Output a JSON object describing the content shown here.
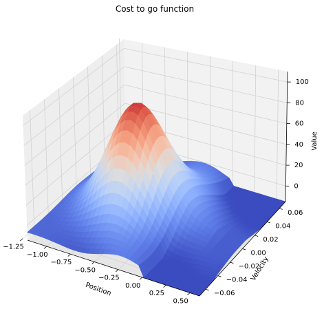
{
  "chart_data": {
    "type": "surface3d",
    "title": "Cost to go function",
    "xlabel": "Position",
    "ylabel": "Velocity",
    "zlabel": "Value",
    "xlim": [
      -1.2,
      0.6
    ],
    "ylim": [
      -0.07,
      0.07
    ],
    "zlim": [
      -15,
      110
    ],
    "x_ticks": [
      "−1.25",
      "−1.00",
      "−0.75",
      "−0.50",
      "−0.25",
      "0.00",
      "0.25",
      "0.50"
    ],
    "y_ticks": [
      "−0.06",
      "−0.04",
      "−0.02",
      "0.00",
      "0.02",
      "0.04",
      "0.06"
    ],
    "z_ticks": [
      "0",
      "20",
      "40",
      "60",
      "80",
      "100"
    ],
    "colormap": "coolwarm",
    "grid": true,
    "value_range": [
      -15,
      108
    ],
    "peak": {
      "position": -0.5,
      "velocity": 0.0,
      "value": 108
    }
  }
}
